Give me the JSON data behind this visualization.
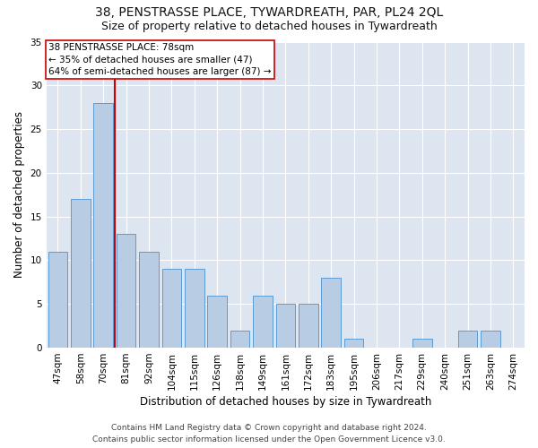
{
  "title": "38, PENSTRASSE PLACE, TYWARDREATH, PAR, PL24 2QL",
  "subtitle": "Size of property relative to detached houses in Tywardreath",
  "xlabel": "Distribution of detached houses by size in Tywardreath",
  "ylabel": "Number of detached properties",
  "categories": [
    "47sqm",
    "58sqm",
    "70sqm",
    "81sqm",
    "92sqm",
    "104sqm",
    "115sqm",
    "126sqm",
    "138sqm",
    "149sqm",
    "161sqm",
    "172sqm",
    "183sqm",
    "195sqm",
    "206sqm",
    "217sqm",
    "229sqm",
    "240sqm",
    "251sqm",
    "263sqm",
    "274sqm"
  ],
  "values": [
    11,
    17,
    28,
    13,
    11,
    9,
    9,
    6,
    2,
    6,
    5,
    5,
    8,
    1,
    0,
    0,
    1,
    0,
    2,
    2,
    0
  ],
  "bar_color": "#b8cce4",
  "bar_edge_color": "#5b9bd5",
  "property_line_x": 2.5,
  "annotation_line1": "38 PENSTRASSE PLACE: 78sqm",
  "annotation_line2": "← 35% of detached houses are smaller (47)",
  "annotation_line3": "64% of semi-detached houses are larger (87) →",
  "annotation_box_color": "#ffffff",
  "annotation_box_edge": "#cc0000",
  "line_color": "#cc0000",
  "ylim": [
    0,
    35
  ],
  "yticks": [
    0,
    5,
    10,
    15,
    20,
    25,
    30,
    35
  ],
  "background_color": "#dde5f0",
  "footer_line1": "Contains HM Land Registry data © Crown copyright and database right 2024.",
  "footer_line2": "Contains public sector information licensed under the Open Government Licence v3.0.",
  "title_fontsize": 10,
  "subtitle_fontsize": 9,
  "xlabel_fontsize": 8.5,
  "ylabel_fontsize": 8.5,
  "tick_fontsize": 7.5,
  "annotation_fontsize": 7.5,
  "footer_fontsize": 6.5
}
